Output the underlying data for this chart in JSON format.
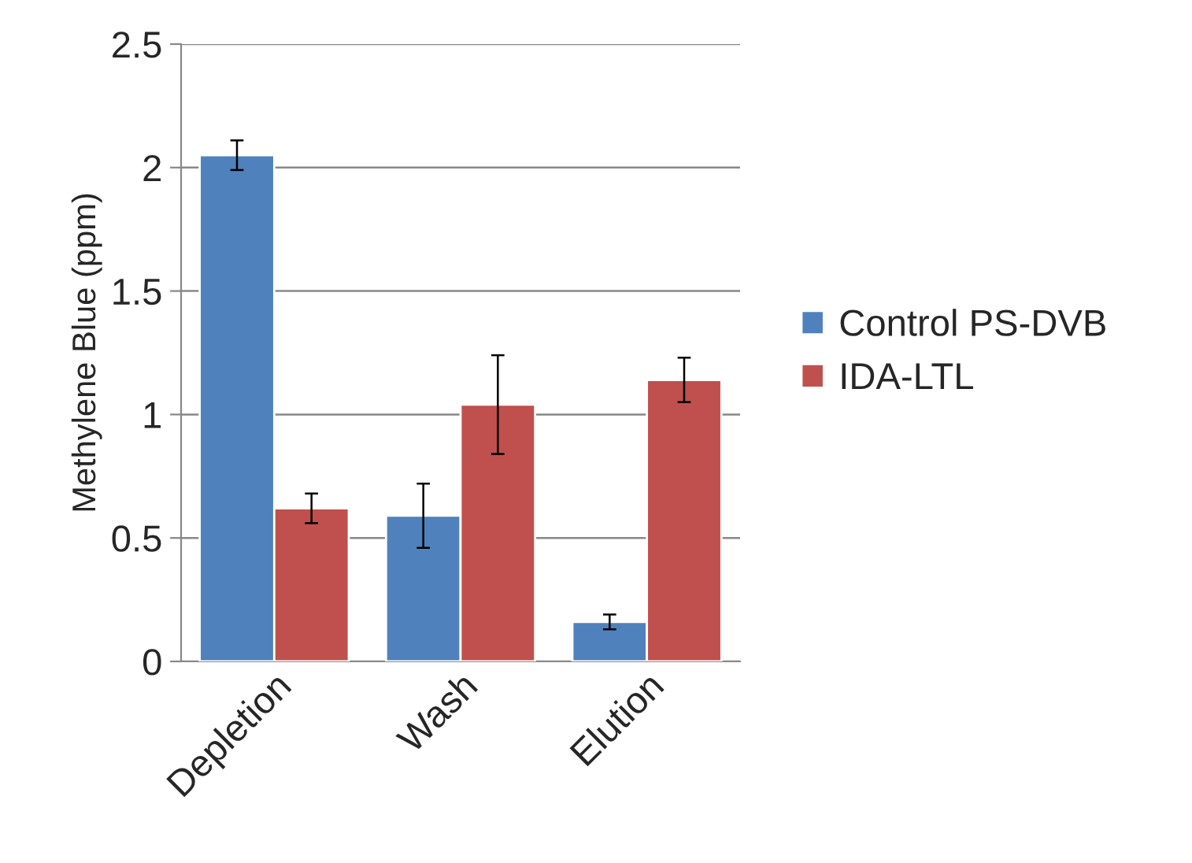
{
  "chart_data": {
    "type": "bar",
    "ylabel": "Methylene Blue (ppm)",
    "categories": [
      "Depletion",
      "Wash",
      "Elution"
    ],
    "series": [
      {
        "name": "Control PS-DVB",
        "color": "#4f81bd",
        "values": [
          2.05,
          0.59,
          0.16
        ],
        "errors": [
          0.06,
          0.13,
          0.03
        ]
      },
      {
        "name": "IDA-LTL",
        "color": "#c0504d",
        "values": [
          0.62,
          1.04,
          1.14
        ],
        "errors": [
          0.06,
          0.2,
          0.09
        ]
      }
    ],
    "ylim": [
      0,
      2.5
    ],
    "yticks": [
      0,
      0.5,
      1,
      1.5,
      2,
      2.5
    ],
    "grid": "y",
    "legend": "right"
  }
}
